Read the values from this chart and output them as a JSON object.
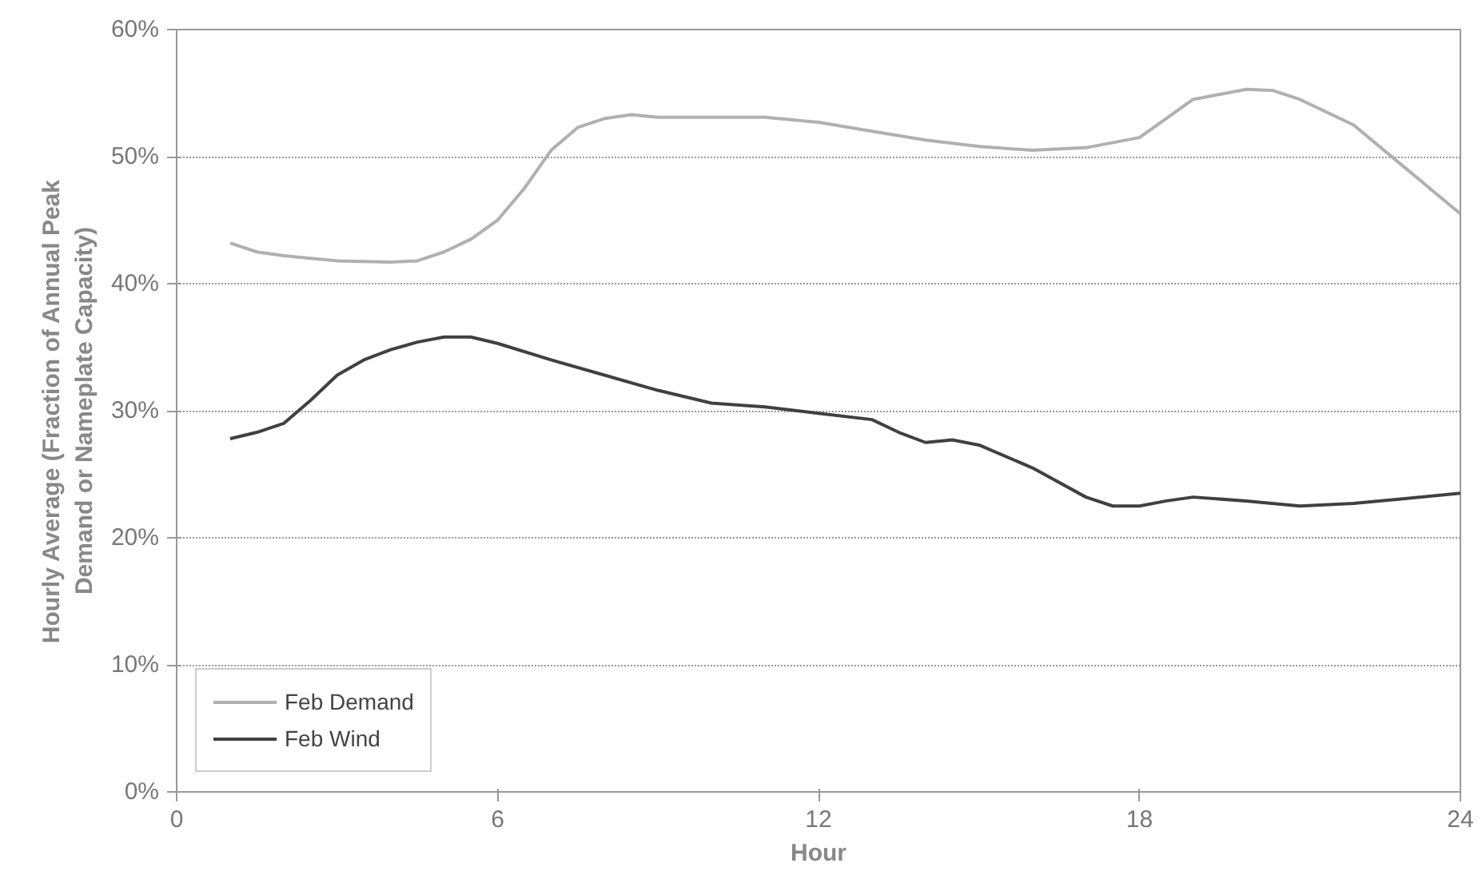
{
  "chart_data": {
    "type": "line",
    "xlabel": "Hour",
    "ylabel": "Hourly Average (Fraction of Annual Peak\nDemand or Nameplate Capacity)",
    "xlim": [
      0,
      24
    ],
    "xticks": [
      0,
      6,
      12,
      18,
      24
    ],
    "ylim": [
      0,
      60
    ],
    "yticks": [
      {
        "value": 0,
        "label": "0%"
      },
      {
        "value": 10,
        "label": "10%"
      },
      {
        "value": 20,
        "label": "20%"
      },
      {
        "value": 30,
        "label": "30%"
      },
      {
        "value": 40,
        "label": "40%"
      },
      {
        "value": 50,
        "label": "50%"
      },
      {
        "value": 60,
        "label": "60%"
      }
    ],
    "grid": "y",
    "legend": "bottom left",
    "marker": "none",
    "line_style": "solid",
    "series": [
      {
        "name": "Feb Demand",
        "color": "#b0b0b0",
        "x": [
          1,
          1.5,
          2,
          2.5,
          3,
          4,
          4.5,
          5,
          5.5,
          6,
          6.5,
          7,
          7.5,
          8,
          8.5,
          9,
          10,
          11,
          12,
          13,
          14,
          15,
          16,
          17,
          18,
          18.5,
          19,
          20,
          20.5,
          21,
          22,
          23,
          24
        ],
        "values": [
          43.2,
          42.5,
          42.2,
          42,
          41.8,
          41.7,
          41.8,
          42.5,
          43.5,
          45,
          47.5,
          50.5,
          52.3,
          53,
          53.3,
          53.1,
          53.1,
          53.1,
          52.7,
          52,
          51.3,
          50.8,
          50.5,
          50.7,
          51.5,
          53,
          54.5,
          55.3,
          55.2,
          54.5,
          52.5,
          49,
          45.5
        ]
      },
      {
        "name": "Feb Wind",
        "color": "#404040",
        "x": [
          1,
          1.5,
          2,
          2.5,
          3,
          3.5,
          4,
          4.5,
          5,
          5.5,
          6,
          7,
          8,
          9,
          10,
          11,
          12,
          13,
          13.5,
          14,
          14.5,
          15,
          16,
          17,
          17.5,
          18,
          18.5,
          19,
          20,
          21,
          22,
          23,
          24
        ],
        "values": [
          27.8,
          28.3,
          29,
          30.8,
          32.8,
          34,
          34.8,
          35.4,
          35.8,
          35.8,
          35.3,
          34,
          32.8,
          31.6,
          30.6,
          30.3,
          29.8,
          29.3,
          28.3,
          27.5,
          27.7,
          27.3,
          25.5,
          23.2,
          22.5,
          22.5,
          22.9,
          23.2,
          22.9,
          22.5,
          22.7,
          23.1,
          23.5
        ]
      }
    ]
  }
}
